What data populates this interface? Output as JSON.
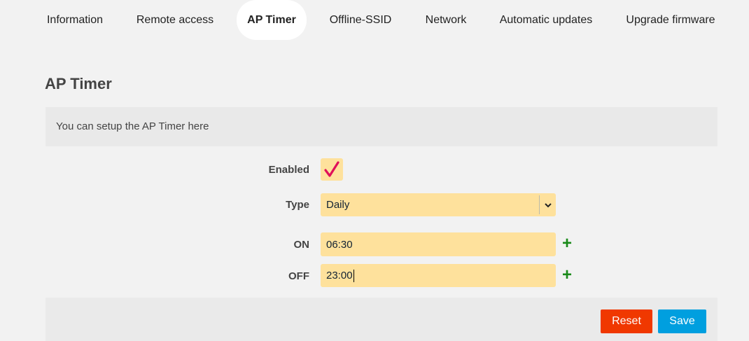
{
  "tabs": [
    {
      "label": "Information"
    },
    {
      "label": "Remote access"
    },
    {
      "label": "AP Timer",
      "active": true
    },
    {
      "label": "Offline-SSID"
    },
    {
      "label": "Network"
    },
    {
      "label": "Automatic updates"
    },
    {
      "label": "Upgrade firmware"
    }
  ],
  "page": {
    "title": "AP Timer",
    "description": "You can setup the AP Timer here"
  },
  "form": {
    "enabled": {
      "label": "Enabled",
      "checked": true,
      "icon": "checkmark-icon"
    },
    "type": {
      "label": "Type",
      "value": "Daily"
    },
    "on": {
      "label": "ON",
      "value": "06:30"
    },
    "off": {
      "label": "OFF",
      "value": "23:00"
    },
    "add_icon": "plus-icon"
  },
  "buttons": {
    "reset": "Reset",
    "save": "Save"
  },
  "colors": {
    "field_bg": "#fee19c",
    "check": "#e0105a",
    "plus": "#1a8a1a",
    "reset": "#f03800",
    "save": "#009fdf"
  }
}
